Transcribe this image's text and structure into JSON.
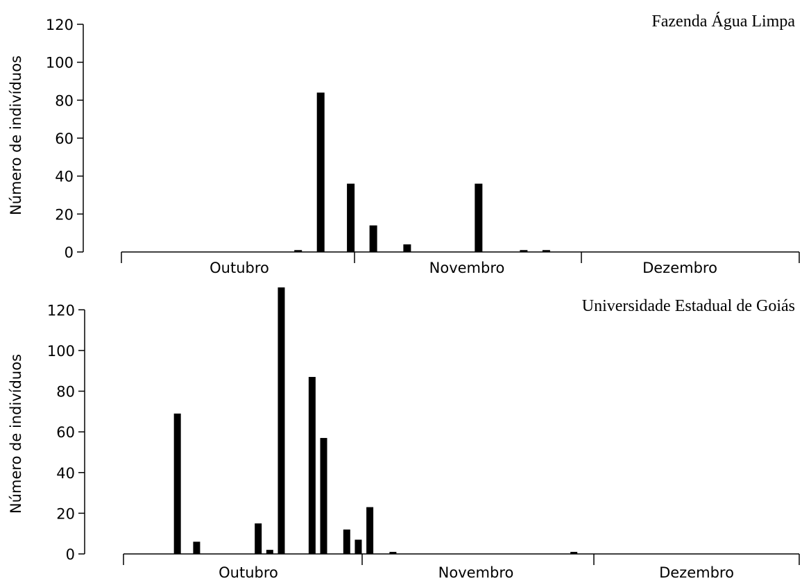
{
  "chart_data": [
    {
      "type": "bar",
      "title": "Fazenda Água Limpa",
      "xlabel": "",
      "ylabel": "Número de indivíduos",
      "ylim": [
        0,
        120
      ],
      "yticks": [
        0,
        20,
        40,
        60,
        80,
        100,
        120
      ],
      "months": [
        "Outubro",
        "Novembro",
        "Dezembro"
      ],
      "x_unit": "day index (Outubro 1 = 0)",
      "bars": [
        {
          "x": 23.5,
          "value": 1
        },
        {
          "x": 26.5,
          "value": 84
        },
        {
          "x": 30.5,
          "value": 36
        },
        {
          "x": 33.5,
          "value": 14
        },
        {
          "x": 38,
          "value": 4
        },
        {
          "x": 47.5,
          "value": 36
        },
        {
          "x": 53.5,
          "value": 1
        },
        {
          "x": 56.5,
          "value": 1
        }
      ]
    },
    {
      "type": "bar",
      "title": "Universidade Estadual de Goiás",
      "xlabel": "",
      "ylabel": "Número de indivíduos",
      "ylim": [
        0,
        130
      ],
      "yticks": [
        0,
        20,
        40,
        60,
        80,
        100,
        120
      ],
      "months": [
        "Outubro",
        "Novembro",
        "Dezembro"
      ],
      "x_unit": "day index (Outubro 1 = 0)",
      "bars": [
        {
          "x": 7,
          "value": 69
        },
        {
          "x": 9.5,
          "value": 6
        },
        {
          "x": 17.5,
          "value": 15
        },
        {
          "x": 19,
          "value": 2
        },
        {
          "x": 20.5,
          "value": 131
        },
        {
          "x": 24.5,
          "value": 87
        },
        {
          "x": 26,
          "value": 57
        },
        {
          "x": 29,
          "value": 12
        },
        {
          "x": 30.5,
          "value": 7
        },
        {
          "x": 32,
          "value": 23
        },
        {
          "x": 35,
          "value": 1
        },
        {
          "x": 58.5,
          "value": 1
        }
      ]
    }
  ]
}
